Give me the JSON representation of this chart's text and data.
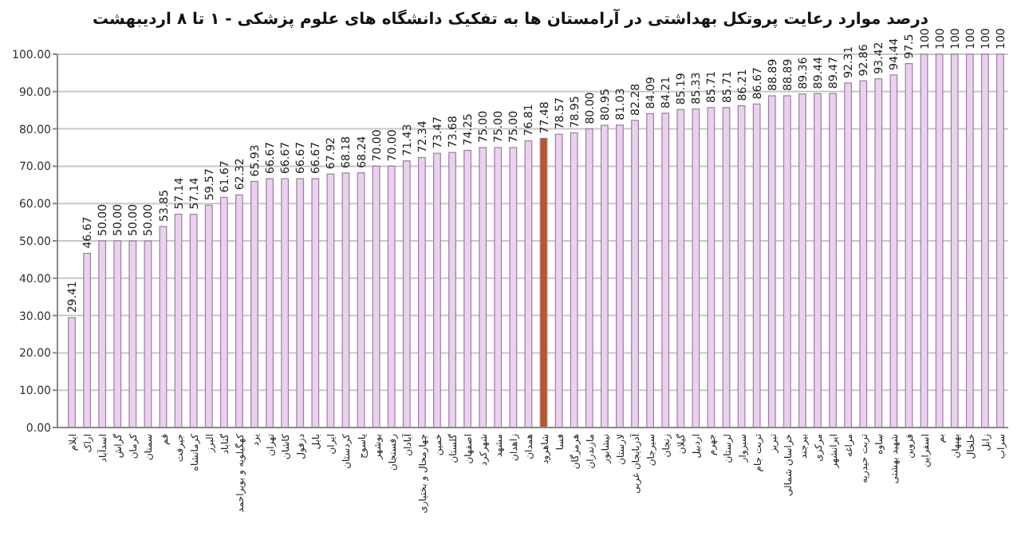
{
  "chart_data": {
    "type": "bar",
    "title": "درصد موارد رعایت پروتکل بهداشتی در آرامستان ها به تفکیک دانشگاه های علوم پزشکی - ۱ تا ۸ اردیبهشت",
    "categories": [
      "ایلام",
      "اراک",
      "اسدآباد",
      "گراش",
      "کرمان",
      "سمنان",
      "قم",
      "جیرفت",
      "کرمانشاه",
      "البرز",
      "گناباد",
      "کهگیلویه و بویراحمد",
      "یزد",
      "تهران",
      "کاشان",
      "دزفول",
      "بابل",
      "ایران",
      "کردستان",
      "یاسوج",
      "بوشهر",
      "رفسنجان",
      "آبادان",
      "چهارمحال و بختیاری",
      "خمین",
      "گلستان",
      "اصفهان",
      "شهرکرد",
      "مشهد",
      "زاهدان",
      "همدان",
      "شاهرود",
      "فسا",
      "هرمزگان",
      "مازندران",
      "نیشابور",
      "لارستان",
      "آذربایجان غربی",
      "سیرجان",
      "زنجان",
      "گیلان",
      "اردبیل",
      "جهرم",
      "لرستان",
      "سبزوار",
      "تربت جام",
      "تبریز",
      "خراسان شمالی",
      "بیرجند",
      "مرکزی",
      "ایرانشهر",
      "مراغه",
      "تربت حیدریه",
      "ساوه",
      "شهید بهشتی",
      "قزوین",
      "اسفراین",
      "بم",
      "بهبهان",
      "خلخال",
      "زابل",
      "سراب"
    ],
    "values": [
      29.41,
      46.67,
      50,
      50,
      50,
      50,
      53.85,
      57.14,
      57.14,
      59.57,
      61.67,
      62.32,
      65.93,
      66.67,
      66.67,
      66.67,
      66.67,
      67.92,
      68.18,
      68.24,
      70,
      70,
      71.43,
      72.34,
      73.47,
      73.68,
      74.25,
      75,
      75,
      75,
      76.81,
      77.48,
      78.57,
      78.95,
      80,
      80.95,
      81.03,
      82.28,
      84.09,
      84.21,
      85.19,
      85.33,
      85.71,
      85.71,
      86.21,
      86.67,
      88.89,
      88.89,
      89.36,
      89.44,
      89.47,
      92.31,
      92.86,
      93.42,
      94.44,
      97.5,
      100,
      100,
      100,
      100,
      100,
      100
    ],
    "value_labels": [
      "29.41",
      "46.67",
      "50.00",
      "50.00",
      "50.00",
      "50.00",
      "53.85",
      "57.14",
      "57.14",
      "59.57",
      "61.67",
      "62.32",
      "65.93",
      "66.67",
      "66.67",
      "66.67",
      "66.67",
      "67.92",
      "68.18",
      "68.24",
      "70.00",
      "70.00",
      "71.43",
      "72.34",
      "73.47",
      "73.68",
      "74.25",
      "75.00",
      "75.00",
      "75.00",
      "76.81",
      "77.48",
      "78.57",
      "78.95",
      "80.00",
      "80.95",
      "81.03",
      "82.28",
      "84.09",
      "84.21",
      "85.19",
      "85.33",
      "85.71",
      "85.71",
      "86.21",
      "86.67",
      "88.89",
      "88.89",
      "89.36",
      "89.44",
      "89.47",
      "92.31",
      "92.86",
      "93.42",
      "94.44",
      "97.5",
      "100",
      "100",
      "100",
      "100",
      "100",
      "100"
    ],
    "colors": [
      "#ecd0f0",
      "#ecd0f0",
      "#ecd0f0",
      "#ecd0f0",
      "#ecd0f0",
      "#ecd0f0",
      "#ecd0f0",
      "#ecd0f0",
      "#ecd0f0",
      "#ecd0f0",
      "#ecd0f0",
      "#ecd0f0",
      "#ecd0f0",
      "#ecd0f0",
      "#ecd0f0",
      "#ecd0f0",
      "#ecd0f0",
      "#ecd0f0",
      "#ecd0f0",
      "#ecd0f0",
      "#ecd0f0",
      "#ecd0f0",
      "#ecd0f0",
      "#ecd0f0",
      "#ecd0f0",
      "#ecd0f0",
      "#ecd0f0",
      "#ecd0f0",
      "#ecd0f0",
      "#ecd0f0",
      "#ecd0f0",
      "#c0561b",
      "#ecd0f0",
      "#ecd0f0",
      "#ecd0f0",
      "#ecd0f0",
      "#ecd0f0",
      "#ecd0f0",
      "#ecd0f0",
      "#ecd0f0",
      "#ecd0f0",
      "#ecd0f0",
      "#ecd0f0",
      "#ecd0f0",
      "#ecd0f0",
      "#ecd0f0",
      "#ecd0f0",
      "#ecd0f0",
      "#ecd0f0",
      "#ecd0f0",
      "#ecd0f0",
      "#ecd0f0",
      "#ecd0f0",
      "#ecd0f0",
      "#ecd0f0",
      "#ecd0f0",
      "#ecd0f0",
      "#ecd0f0",
      "#ecd0f0",
      "#ecd0f0",
      "#ecd0f0",
      "#ecd0f0"
    ],
    "ylim": [
      0,
      100
    ],
    "yticks": [
      {
        "value": 0,
        "label": "0.00"
      },
      {
        "value": 10,
        "label": "10.00"
      },
      {
        "value": 20,
        "label": "20.00"
      },
      {
        "value": 30,
        "label": "30.00"
      },
      {
        "value": 40,
        "label": "40.00"
      },
      {
        "value": 50,
        "label": "50.00"
      },
      {
        "value": 60,
        "label": "60.00"
      },
      {
        "value": 70,
        "label": "70.00"
      },
      {
        "value": 80,
        "label": "80.00"
      },
      {
        "value": 90,
        "label": "90.00"
      },
      {
        "value": 100,
        "label": "100.00"
      }
    ],
    "grid": "y"
  }
}
